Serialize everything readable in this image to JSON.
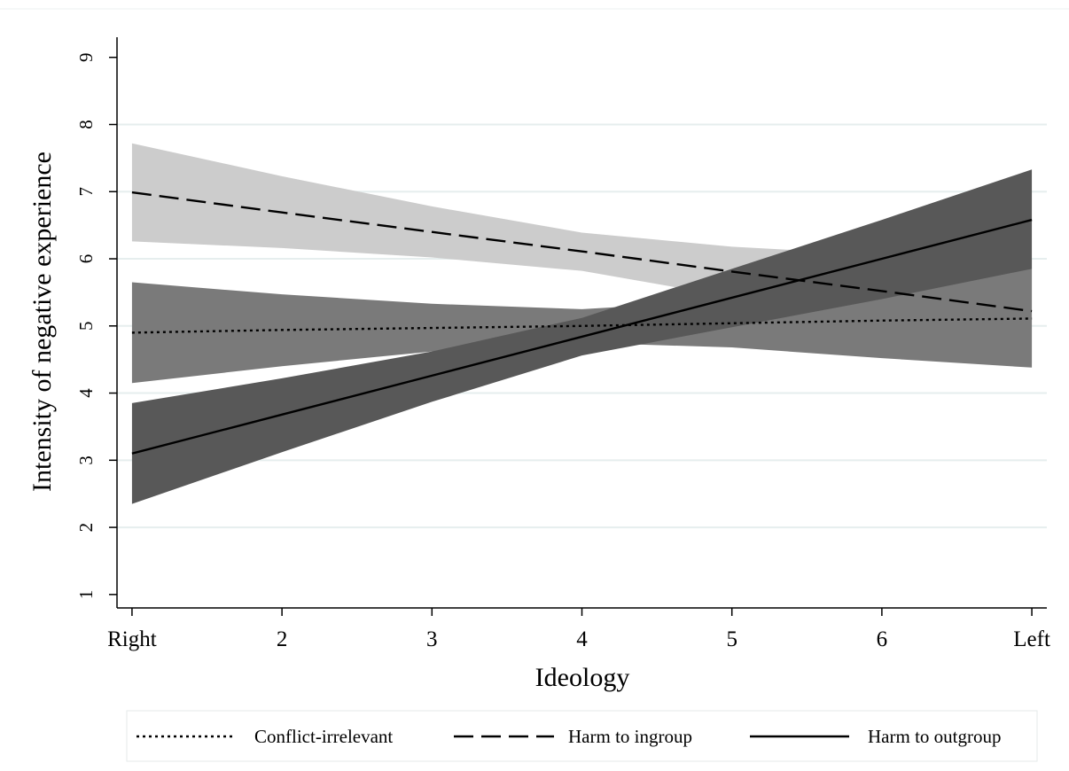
{
  "chart_data": {
    "type": "line",
    "title": "",
    "xlabel": "Ideology",
    "ylabel": "Intensity of negative experience",
    "x": [
      1,
      2,
      3,
      4,
      5,
      6,
      7
    ],
    "x_tick_labels": [
      "Right",
      "2",
      "3",
      "4",
      "5",
      "6",
      "Left"
    ],
    "xlim": [
      0.9,
      7.1
    ],
    "ylim": [
      0.8,
      9.3
    ],
    "y_ticks": [
      1,
      2,
      3,
      4,
      5,
      6,
      7,
      8,
      9
    ],
    "grid": "horizontal",
    "legend_position": "bottom",
    "series": [
      {
        "name": "Conflict-irrelevant",
        "line_style": "dotted",
        "band_color": "#7a7a7a",
        "values": [
          4.9,
          4.94,
          4.97,
          5.0,
          5.04,
          5.08,
          5.11
        ],
        "ci_lower": [
          4.15,
          4.4,
          4.62,
          4.75,
          4.68,
          4.52,
          4.38
        ],
        "ci_upper": [
          5.65,
          5.47,
          5.33,
          5.25,
          5.38,
          5.63,
          5.86
        ]
      },
      {
        "name": "Harm to ingroup",
        "line_style": "dashed",
        "band_color": "#cccccc",
        "values": [
          6.99,
          6.69,
          6.4,
          6.11,
          5.81,
          5.52,
          5.22
        ],
        "ci_lower": [
          6.26,
          6.16,
          6.02,
          5.82,
          5.43,
          4.98,
          4.44
        ],
        "ci_upper": [
          7.72,
          7.23,
          6.78,
          6.39,
          6.18,
          6.06,
          5.99
        ]
      },
      {
        "name": "Harm to outgroup",
        "line_style": "solid",
        "band_color": "#585858",
        "values": [
          3.1,
          3.68,
          4.26,
          4.84,
          5.42,
          6.0,
          6.58
        ],
        "ci_lower": [
          2.35,
          3.12,
          3.87,
          4.56,
          4.98,
          5.4,
          5.85
        ],
        "ci_upper": [
          3.85,
          4.22,
          4.62,
          5.12,
          5.85,
          6.58,
          7.33
        ]
      }
    ]
  }
}
